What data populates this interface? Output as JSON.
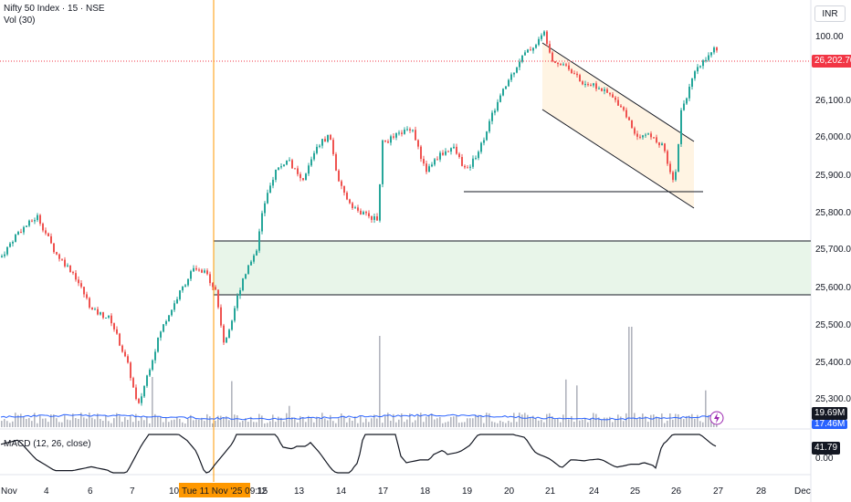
{
  "header": {
    "symbol_title": "Nifty 50 Index · 15 · NSE",
    "volume_indicator": "Vol (30)",
    "currency": "INR"
  },
  "macd": {
    "title": "MACD (12, 26, close)",
    "last_value": "41.79",
    "zero_label": "0.00"
  },
  "price_axis": {
    "ticks": [
      "26,100.00",
      "26,000.00",
      "25,900.00",
      "25,800.00",
      "25,700.00",
      "25,600.00",
      "25,500.00",
      "25,400.00",
      "25,300.00"
    ],
    "partial_top_label": "100.00",
    "current_price": "26,202.70",
    "volume_value": "19.69M",
    "volume_ma_value": "17.46M"
  },
  "time_axis": {
    "ticks": [
      "Nov",
      "4",
      "6",
      "7",
      "10",
      "12",
      "13",
      "14",
      "17",
      "18",
      "19",
      "20",
      "21",
      "24",
      "25",
      "26",
      "27",
      "28",
      "Dec"
    ],
    "crosshair_label": "Tue 11 Nov '25   09:15"
  },
  "colors": {
    "up": "#26a69a",
    "down": "#ef5350",
    "crosshair": "#ff9800",
    "zone_fill": "#e8f5e9",
    "channel_fill": "#fff3e0",
    "price_tag": "#f23645",
    "volume_tag": "#131722",
    "volume_ma_tag": "#2962ff"
  },
  "chart_data": {
    "type": "candlestick",
    "price_range": [
      25270,
      26320
    ],
    "key_levels": {
      "resistance_zone": [
        25580,
        25725
      ],
      "support_line": 25855,
      "current_price": 26202.7
    },
    "path": [
      [
        0,
        25690
      ],
      [
        18,
        25750
      ],
      [
        40,
        25790
      ],
      [
        60,
        25700
      ],
      [
        80,
        25650
      ],
      [
        100,
        25560
      ],
      [
        120,
        25540
      ],
      [
        140,
        25420
      ],
      [
        150,
        25320
      ],
      [
        160,
        25400
      ],
      [
        175,
        25510
      ],
      [
        195,
        25600
      ],
      [
        210,
        25660
      ],
      [
        225,
        25650
      ],
      [
        235,
        25610
      ],
      [
        245,
        25470
      ],
      [
        255,
        25560
      ],
      [
        265,
        25640
      ],
      [
        280,
        25710
      ],
      [
        285,
        25790
      ],
      [
        300,
        25900
      ],
      [
        315,
        25930
      ],
      [
        330,
        25870
      ],
      [
        345,
        25960
      ],
      [
        360,
        25990
      ],
      [
        370,
        25870
      ],
      [
        380,
        25830
      ],
      [
        392,
        25800
      ],
      [
        405,
        25790
      ],
      [
        412,
        25780
      ],
      [
        418,
        25970
      ],
      [
        435,
        25990
      ],
      [
        450,
        26010
      ],
      [
        465,
        25900
      ],
      [
        480,
        25940
      ],
      [
        495,
        25960
      ],
      [
        510,
        25900
      ],
      [
        525,
        25960
      ],
      [
        540,
        26050
      ],
      [
        555,
        26120
      ],
      [
        570,
        26180
      ],
      [
        585,
        26210
      ],
      [
        595,
        26240
      ],
      [
        605,
        26170
      ],
      [
        620,
        26160
      ],
      [
        635,
        26120
      ],
      [
        650,
        26110
      ],
      [
        665,
        26090
      ],
      [
        680,
        26060
      ],
      [
        695,
        25990
      ],
      [
        710,
        25990
      ],
      [
        725,
        25960
      ],
      [
        738,
        25870
      ],
      [
        745,
        26050
      ],
      [
        760,
        26140
      ],
      [
        775,
        26190
      ],
      [
        785,
        26205
      ]
    ]
  }
}
